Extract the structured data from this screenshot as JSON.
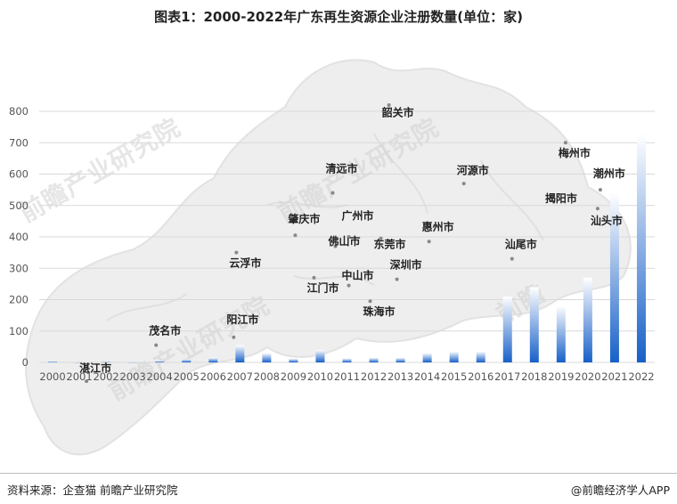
{
  "title": "图表1：2000-2022年广东再生资源企业注册数量(单位：家)",
  "footer": {
    "source": "资料来源：企查猫 前瞻产业研究院",
    "brand": "@前瞻经济学人APP"
  },
  "watermarks": [
    "前瞻产业研究院",
    "前瞻产业研究院",
    "前瞻产业研究院",
    "前瞻"
  ],
  "colors": {
    "bar_top": "#ffffff",
    "bar_bottom": "#1760c8",
    "grid": "#d9d9d9",
    "map": "#ededed"
  },
  "chart_data": {
    "type": "bar",
    "title": "图表1：2000-2022年广东再生资源企业注册数量(单位：家)",
    "xlabel": "",
    "ylabel": "",
    "ylim": [
      0,
      800
    ],
    "yticks": [
      0,
      100,
      200,
      300,
      400,
      500,
      600,
      700,
      800
    ],
    "grid": true,
    "categories": [
      "2000",
      "2001",
      "2002",
      "2003",
      "2004",
      "2005",
      "2006",
      "2007",
      "2008",
      "2009",
      "2010",
      "2011",
      "2012",
      "2013",
      "2014",
      "2015",
      "2016",
      "2017",
      "2018",
      "2019",
      "2020",
      "2021",
      "2022"
    ],
    "values": [
      3,
      1,
      2,
      1,
      5,
      10,
      15,
      55,
      30,
      12,
      40,
      13,
      15,
      15,
      30,
      35,
      35,
      210,
      240,
      180,
      270,
      540,
      730
    ],
    "map_points": [
      {
        "name": "韶关市",
        "x": 2012.9,
        "y": 785
      },
      {
        "name": "梅州市",
        "x": 2019.5,
        "y": 655
      },
      {
        "name": "清远市",
        "x": 2010.8,
        "y": 605
      },
      {
        "name": "河源市",
        "x": 2015.7,
        "y": 600
      },
      {
        "name": "潮州市",
        "x": 2020.8,
        "y": 590
      },
      {
        "name": "揭阳市",
        "x": 2019.0,
        "y": 510
      },
      {
        "name": "肇庆市",
        "x": 2009.4,
        "y": 445
      },
      {
        "name": "广州市",
        "x": 2011.4,
        "y": 455
      },
      {
        "name": "汕头市",
        "x": 2020.7,
        "y": 440
      },
      {
        "name": "惠州市",
        "x": 2014.4,
        "y": 420
      },
      {
        "name": "佛山市",
        "x": 2010.9,
        "y": 375
      },
      {
        "name": "东莞市",
        "x": 2012.6,
        "y": 365
      },
      {
        "name": "汕尾市",
        "x": 2017.5,
        "y": 365
      },
      {
        "name": "云浮市",
        "x": 2007.2,
        "y": 305
      },
      {
        "name": "深圳市",
        "x": 2013.2,
        "y": 300
      },
      {
        "name": "中山市",
        "x": 2011.4,
        "y": 265
      },
      {
        "name": "江门市",
        "x": 2010.1,
        "y": 225
      },
      {
        "name": "阳江市",
        "x": 2007.1,
        "y": 125
      },
      {
        "name": "珠海市",
        "x": 2012.2,
        "y": 150
      },
      {
        "name": "茂名市",
        "x": 2004.2,
        "y": 90
      },
      {
        "name": "湛江市",
        "x": 2001.6,
        "y": -30
      }
    ],
    "map_point_values": {
      "韶关市": 820,
      "梅州市": 700,
      "清远市": 540,
      "河源市": 570,
      "潮州市": 550,
      "揭阳市": 530,
      "肇庆市": 405,
      "广州市": 400,
      "汕头市": 490,
      "惠州市": 385,
      "佛山市": 370,
      "东莞市": 395,
      "汕尾市": 330,
      "云浮市": 350,
      "深圳市": 265,
      "中山市": 245,
      "江门市": 270,
      "阳江市": 80,
      "珠海市": 195,
      "茂名市": 55,
      "湛江市": -60
    }
  }
}
